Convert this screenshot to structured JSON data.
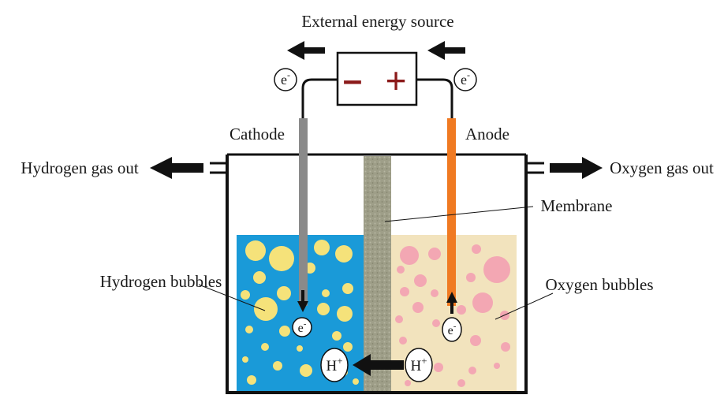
{
  "labels": {
    "source": "External energy source",
    "minus": "–",
    "plus": "+",
    "cathode": "Cathode",
    "anode": "Anode",
    "hydrogen_out": "Hydrogen gas out",
    "oxygen_out": "Oxygen gas out",
    "membrane": "Membrane",
    "hydrogen_bubbles": "Hydrogen bubbles",
    "oxygen_bubbles": "Oxygen bubbles",
    "electron_base": "e",
    "electron_sup": "-",
    "proton_base": "H",
    "proton_sup": "+"
  },
  "colors": {
    "cathode_solution": "#1a9ad8",
    "anode_solution": "#f2e3bd",
    "hydrogen_bubble": "#f5e27a",
    "oxygen_bubble": "#f3a7b3",
    "membrane": "#9e9e88",
    "cathode_electrode": "#8a8a8a",
    "anode_electrode": "#f07a22",
    "source_sign": "#8b1a1a"
  }
}
